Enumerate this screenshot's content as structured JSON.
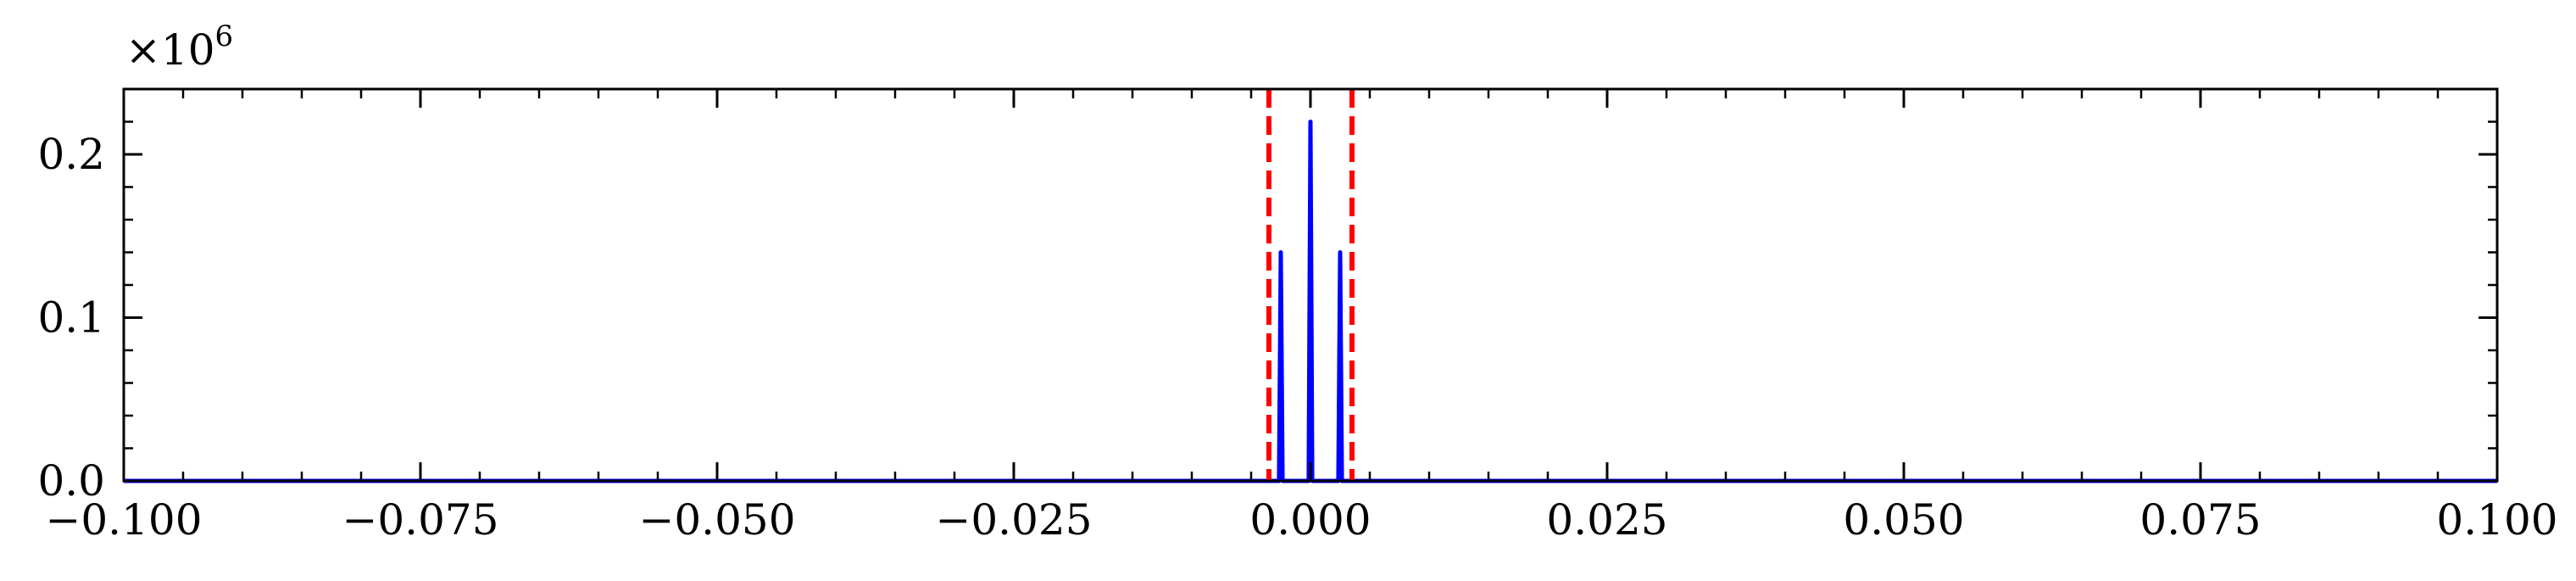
{
  "chart_data": {
    "type": "line",
    "title": "",
    "xlabel": "",
    "ylabel": "",
    "y_scale_label": "×10",
    "y_scale_exponent": "6",
    "xlim": [
      -0.1,
      0.1
    ],
    "ylim": [
      0.0,
      0.24
    ],
    "grid": false,
    "x_ticks": [
      -0.1,
      -0.075,
      -0.05,
      -0.025,
      0.0,
      0.025,
      0.05,
      0.075,
      0.1
    ],
    "x_tick_labels": [
      "−0.100",
      "−0.075",
      "−0.050",
      "−0.025",
      "0.000",
      "0.025",
      "0.050",
      "0.075",
      "0.100"
    ],
    "x_minor_step": 0.005,
    "y_ticks": [
      0.0,
      0.1,
      0.2
    ],
    "y_tick_labels": [
      "0.0",
      "0.1",
      "0.2"
    ],
    "y_minor_step": 0.02,
    "series": [
      {
        "color": "#0000ff",
        "style": "solid",
        "x": [
          -0.1,
          -0.0032,
          -0.00265,
          -0.0025,
          -0.00235,
          -0.0018,
          -0.0006,
          -0.00015,
          0.0,
          0.00015,
          0.0006,
          0.0018,
          0.00235,
          0.0025,
          0.00265,
          0.0032,
          0.1
        ],
        "y": [
          0.0,
          0.0,
          0.0,
          0.14,
          0.0,
          0.0,
          0.0,
          0.0,
          0.22,
          0.0,
          0.0,
          0.0,
          0.0,
          0.14,
          0.0,
          0.0,
          0.0
        ]
      }
    ],
    "vlines": [
      {
        "x": -0.0035,
        "color": "#ff0000",
        "style": "dashed"
      },
      {
        "x": 0.0035,
        "color": "#ff0000",
        "style": "dashed"
      }
    ]
  }
}
